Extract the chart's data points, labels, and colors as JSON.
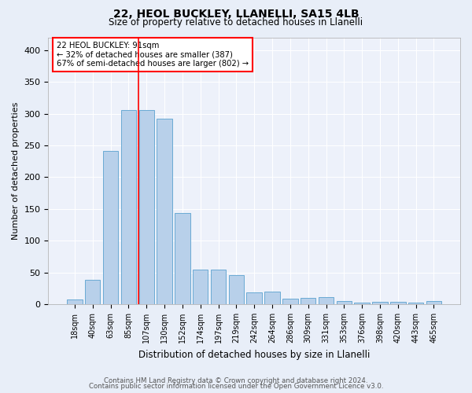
{
  "title1": "22, HEOL BUCKLEY, LLANELLI, SA15 4LB",
  "title2": "Size of property relative to detached houses in Llanelli",
  "xlabel": "Distribution of detached houses by size in Llanelli",
  "ylabel": "Number of detached properties",
  "categories": [
    "18sqm",
    "40sqm",
    "63sqm",
    "85sqm",
    "107sqm",
    "130sqm",
    "152sqm",
    "174sqm",
    "197sqm",
    "219sqm",
    "242sqm",
    "264sqm",
    "286sqm",
    "309sqm",
    "331sqm",
    "353sqm",
    "376sqm",
    "398sqm",
    "420sqm",
    "443sqm",
    "465sqm"
  ],
  "values": [
    8,
    39,
    241,
    305,
    305,
    292,
    144,
    55,
    55,
    46,
    19,
    20,
    9,
    10,
    11,
    5,
    2,
    4,
    4,
    3,
    5
  ],
  "bar_color": "#b8d0ea",
  "bar_edge_color": "#6aaad4",
  "property_line_x": 3.57,
  "annotation_text1": "22 HEOL BUCKLEY: 91sqm",
  "annotation_text2": "← 32% of detached houses are smaller (387)",
  "annotation_text3": "67% of semi-detached houses are larger (802) →",
  "footer1": "Contains HM Land Registry data © Crown copyright and database right 2024.",
  "footer2": "Contains public sector information licensed under the Open Government Licence v3.0.",
  "ylim": [
    0,
    420
  ],
  "yticks": [
    0,
    50,
    100,
    150,
    200,
    250,
    300,
    350,
    400
  ],
  "bg_color": "#e8eef8",
  "plot_bg_color": "#edf1fa"
}
